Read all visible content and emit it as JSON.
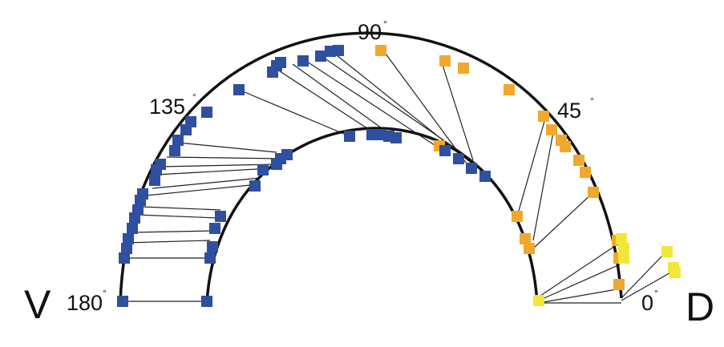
{
  "labels": {
    "angle_90": "90",
    "angle_45": "45",
    "angle_135": "135",
    "angle_180": "180",
    "angle_0": "0",
    "degree_symbol": "°",
    "left_end": "V",
    "right_end": "D"
  },
  "colors": {
    "ventral": "#2f4f9f",
    "dorsal": "#f0a82c",
    "tip": "#f3e63a",
    "arc": "#111111",
    "link": "#222222"
  }
}
